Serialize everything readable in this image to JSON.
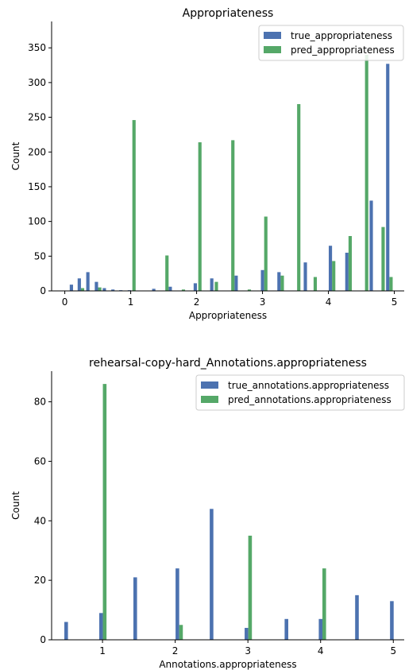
{
  "chart_data": [
    {
      "type": "bar",
      "title": "Appropriateness",
      "xlabel": "Appropriateness",
      "ylabel": "Count",
      "xlim": [
        -0.2,
        5.15
      ],
      "ylim": [
        0,
        388
      ],
      "xticks": [
        0,
        1,
        2,
        3,
        4,
        5
      ],
      "yticks": [
        0,
        50,
        100,
        150,
        200,
        250,
        300,
        350
      ],
      "legend": "top-right",
      "bar_width": 0.05,
      "series": [
        {
          "name": "true_appropriateness",
          "color": "#4c72b0",
          "points": [
            {
              "x": 0.1,
              "y": 9
            },
            {
              "x": 0.22,
              "y": 18
            },
            {
              "x": 0.35,
              "y": 27
            },
            {
              "x": 0.48,
              "y": 13
            },
            {
              "x": 0.6,
              "y": 4
            },
            {
              "x": 0.73,
              "y": 2
            },
            {
              "x": 0.85,
              "y": 1
            },
            {
              "x": 0.98,
              "y": 1
            },
            {
              "x": 1.1,
              "y": 0
            },
            {
              "x": 1.35,
              "y": 3
            },
            {
              "x": 1.6,
              "y": 6
            },
            {
              "x": 1.98,
              "y": 11
            },
            {
              "x": 2.23,
              "y": 18
            },
            {
              "x": 2.6,
              "y": 22
            },
            {
              "x": 3.0,
              "y": 30
            },
            {
              "x": 3.25,
              "y": 27
            },
            {
              "x": 3.65,
              "y": 41
            },
            {
              "x": 4.03,
              "y": 65
            },
            {
              "x": 4.28,
              "y": 55
            },
            {
              "x": 4.65,
              "y": 130
            },
            {
              "x": 4.9,
              "y": 327
            }
          ]
        },
        {
          "name": "pred_appropriateness",
          "color": "#55a868",
          "points": [
            {
              "x": 0.27,
              "y": 4
            },
            {
              "x": 0.53,
              "y": 5
            },
            {
              "x": 1.05,
              "y": 246
            },
            {
              "x": 1.55,
              "y": 51
            },
            {
              "x": 1.8,
              "y": 2
            },
            {
              "x": 2.05,
              "y": 214
            },
            {
              "x": 2.3,
              "y": 13
            },
            {
              "x": 2.55,
              "y": 217
            },
            {
              "x": 2.8,
              "y": 2
            },
            {
              "x": 3.05,
              "y": 107
            },
            {
              "x": 3.3,
              "y": 22
            },
            {
              "x": 3.55,
              "y": 269
            },
            {
              "x": 3.8,
              "y": 20
            },
            {
              "x": 4.08,
              "y": 43
            },
            {
              "x": 4.33,
              "y": 79
            },
            {
              "x": 4.58,
              "y": 340
            },
            {
              "x": 4.83,
              "y": 92
            },
            {
              "x": 4.95,
              "y": 20
            }
          ]
        }
      ]
    },
    {
      "type": "bar",
      "title": "rehearsal-copy-hard_Annotations.appropriateness",
      "xlabel": "Annotations.appropriateness",
      "ylabel": "Count",
      "xlim": [
        0.3,
        5.15
      ],
      "ylim": [
        0,
        90.3
      ],
      "xticks": [
        1,
        2,
        3,
        4,
        5
      ],
      "yticks": [
        0,
        20,
        40,
        60,
        80
      ],
      "legend": "top-right",
      "bar_width": 0.05,
      "series": [
        {
          "name": "true_annotations.appropriateness",
          "color": "#4c72b0",
          "points": [
            {
              "x": 0.5,
              "y": 6
            },
            {
              "x": 0.98,
              "y": 9
            },
            {
              "x": 1.45,
              "y": 21
            },
            {
              "x": 2.03,
              "y": 24
            },
            {
              "x": 2.5,
              "y": 44
            },
            {
              "x": 2.98,
              "y": 4
            },
            {
              "x": 3.53,
              "y": 7
            },
            {
              "x": 4.0,
              "y": 7
            },
            {
              "x": 4.5,
              "y": 15
            },
            {
              "x": 4.98,
              "y": 13
            }
          ]
        },
        {
          "name": "pred_annotations.appropriateness",
          "color": "#55a868",
          "points": [
            {
              "x": 1.03,
              "y": 86
            },
            {
              "x": 2.08,
              "y": 5
            },
            {
              "x": 3.03,
              "y": 35
            },
            {
              "x": 4.05,
              "y": 24
            }
          ]
        }
      ]
    }
  ]
}
